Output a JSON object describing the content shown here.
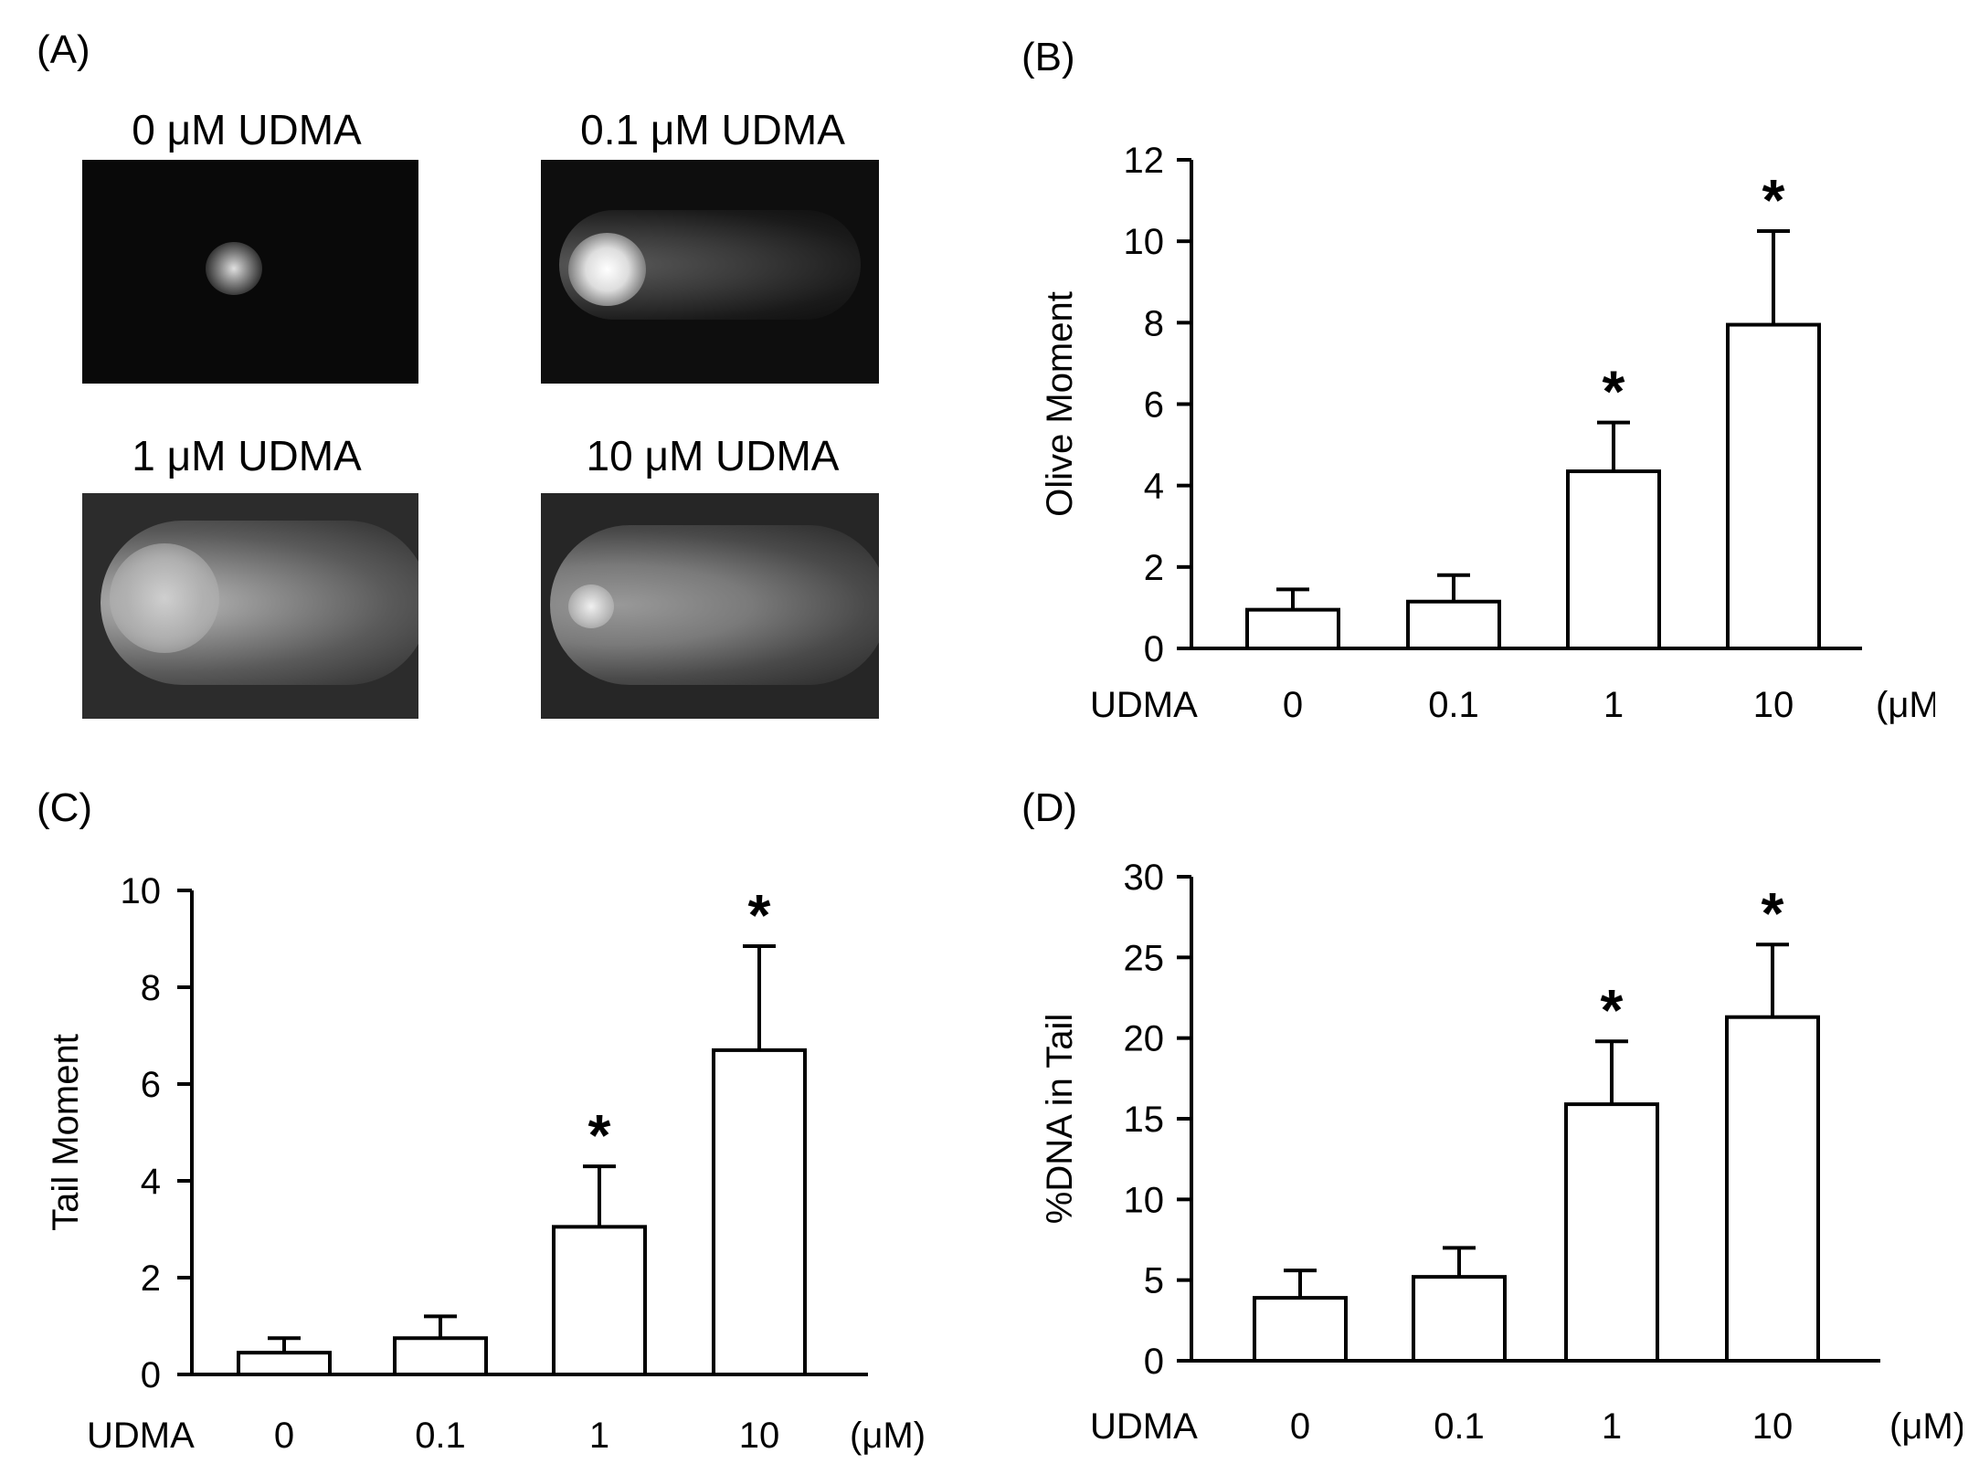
{
  "panels": {
    "a_label": "(A)",
    "b_label": "(B)",
    "c_label": "(C)",
    "d_label": "(D)"
  },
  "micrographs": [
    {
      "caption": "0 μM UDMA"
    },
    {
      "caption": "0.1 μM UDMA"
    },
    {
      "caption": "1 μM UDMA"
    },
    {
      "caption": "10 μM UDMA"
    }
  ],
  "chart_data": [
    {
      "id": "B",
      "type": "bar",
      "categories": [
        "0",
        "0.1",
        "1",
        "10"
      ],
      "values": [
        0.95,
        1.15,
        4.35,
        7.95
      ],
      "errors": [
        0.5,
        0.65,
        1.2,
        2.3
      ],
      "significant": [
        false,
        false,
        true,
        true
      ],
      "ylabel": "Olive Moment",
      "xlabel_prefix": "UDMA",
      "unit": "(μM)",
      "ylim": [
        0,
        12
      ],
      "yticks": [
        "0",
        "2",
        "4",
        "6",
        "8",
        "10",
        "12"
      ],
      "marker": "*"
    },
    {
      "id": "C",
      "type": "bar",
      "categories": [
        "0",
        "0.1",
        "1",
        "10"
      ],
      "values": [
        0.45,
        0.75,
        3.05,
        6.7
      ],
      "errors": [
        0.3,
        0.45,
        1.25,
        2.15
      ],
      "significant": [
        false,
        false,
        true,
        true
      ],
      "ylabel": "Tail Moment",
      "xlabel_prefix": "UDMA",
      "unit": "(μM)",
      "ylim": [
        0,
        10
      ],
      "yticks": [
        "0",
        "2",
        "4",
        "6",
        "8",
        "10"
      ],
      "marker": "*"
    },
    {
      "id": "D",
      "type": "bar",
      "categories": [
        "0",
        "0.1",
        "1",
        "10"
      ],
      "values": [
        3.9,
        5.2,
        15.9,
        21.3
      ],
      "errors": [
        1.7,
        1.8,
        3.9,
        4.5
      ],
      "significant": [
        false,
        false,
        true,
        true
      ],
      "ylabel": "%DNA in Tail",
      "xlabel_prefix": "UDMA",
      "unit": "(μM)",
      "ylim": [
        0,
        30
      ],
      "yticks": [
        "0",
        "5",
        "10",
        "15",
        "20",
        "25",
        "30"
      ],
      "marker": "*"
    }
  ]
}
